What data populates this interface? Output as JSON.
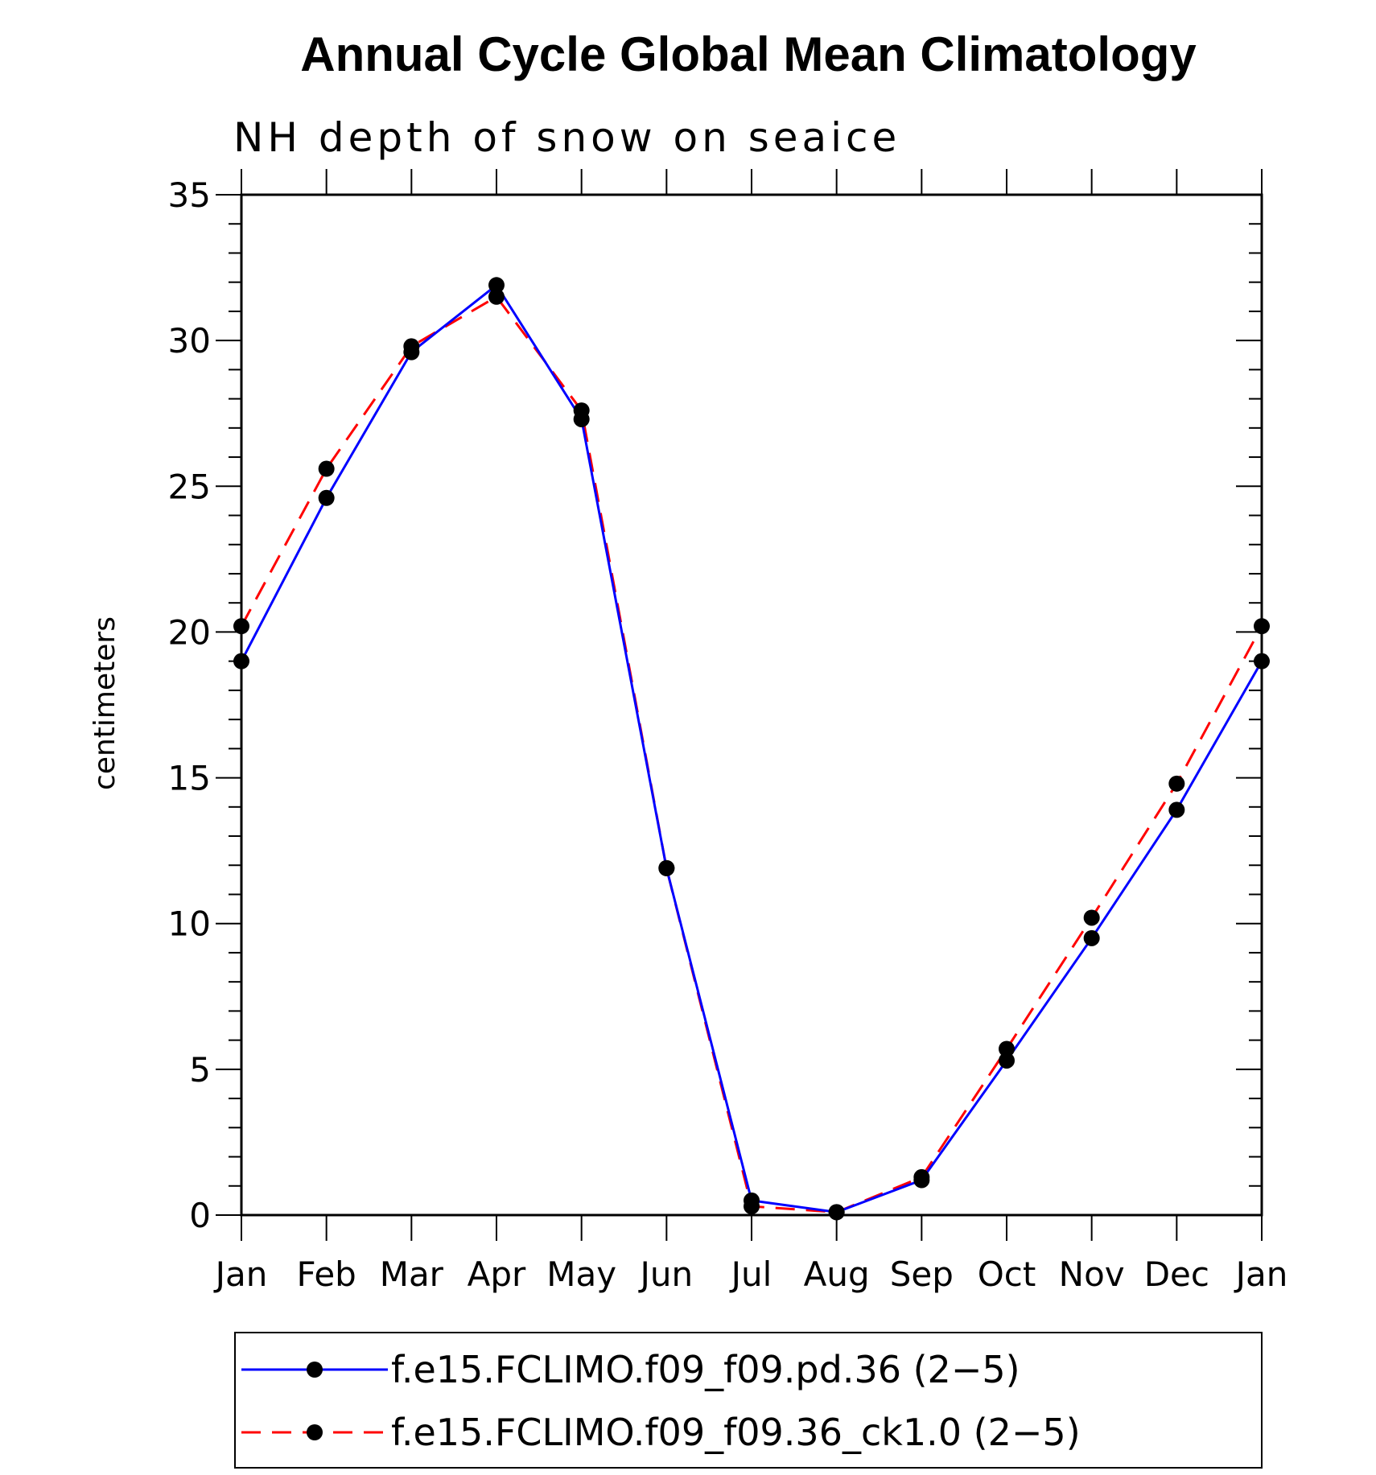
{
  "chart_data": {
    "type": "line",
    "title": "Annual Cycle Global Mean Climatology",
    "subtitle": "NH depth of snow on seaice",
    "ylabel": "centimeters",
    "xlabel": "",
    "categories": [
      "Jan",
      "Feb",
      "Mar",
      "Apr",
      "May",
      "Jun",
      "Jul",
      "Aug",
      "Sep",
      "Oct",
      "Nov",
      "Dec",
      "Jan"
    ],
    "ylim": [
      0,
      35
    ],
    "yticks": [
      0,
      5,
      10,
      15,
      20,
      25,
      30,
      35
    ],
    "ytick_labels": [
      "0",
      "5",
      "10",
      "15",
      "20",
      "25",
      "30",
      "35"
    ],
    "legend_position": "bottom",
    "series": [
      {
        "name": "f.e15.FCLIMO.f09_f09.pd.36 (2−5)",
        "color": "#0000ff",
        "line_style": "solid",
        "marker": "filled-circle",
        "values": [
          19.0,
          24.6,
          29.6,
          31.9,
          27.3,
          11.9,
          0.5,
          0.1,
          1.2,
          5.3,
          9.5,
          13.9,
          19.0
        ]
      },
      {
        "name": "f.e15.FCLIMO.f09_f09.36_ck1.0 (2−5)",
        "color": "#ff0000",
        "line_style": "dashed",
        "marker": "filled-circle",
        "values": [
          20.2,
          25.6,
          29.8,
          31.5,
          27.6,
          11.9,
          0.3,
          0.1,
          1.3,
          5.7,
          10.2,
          14.8,
          20.2
        ]
      }
    ]
  }
}
